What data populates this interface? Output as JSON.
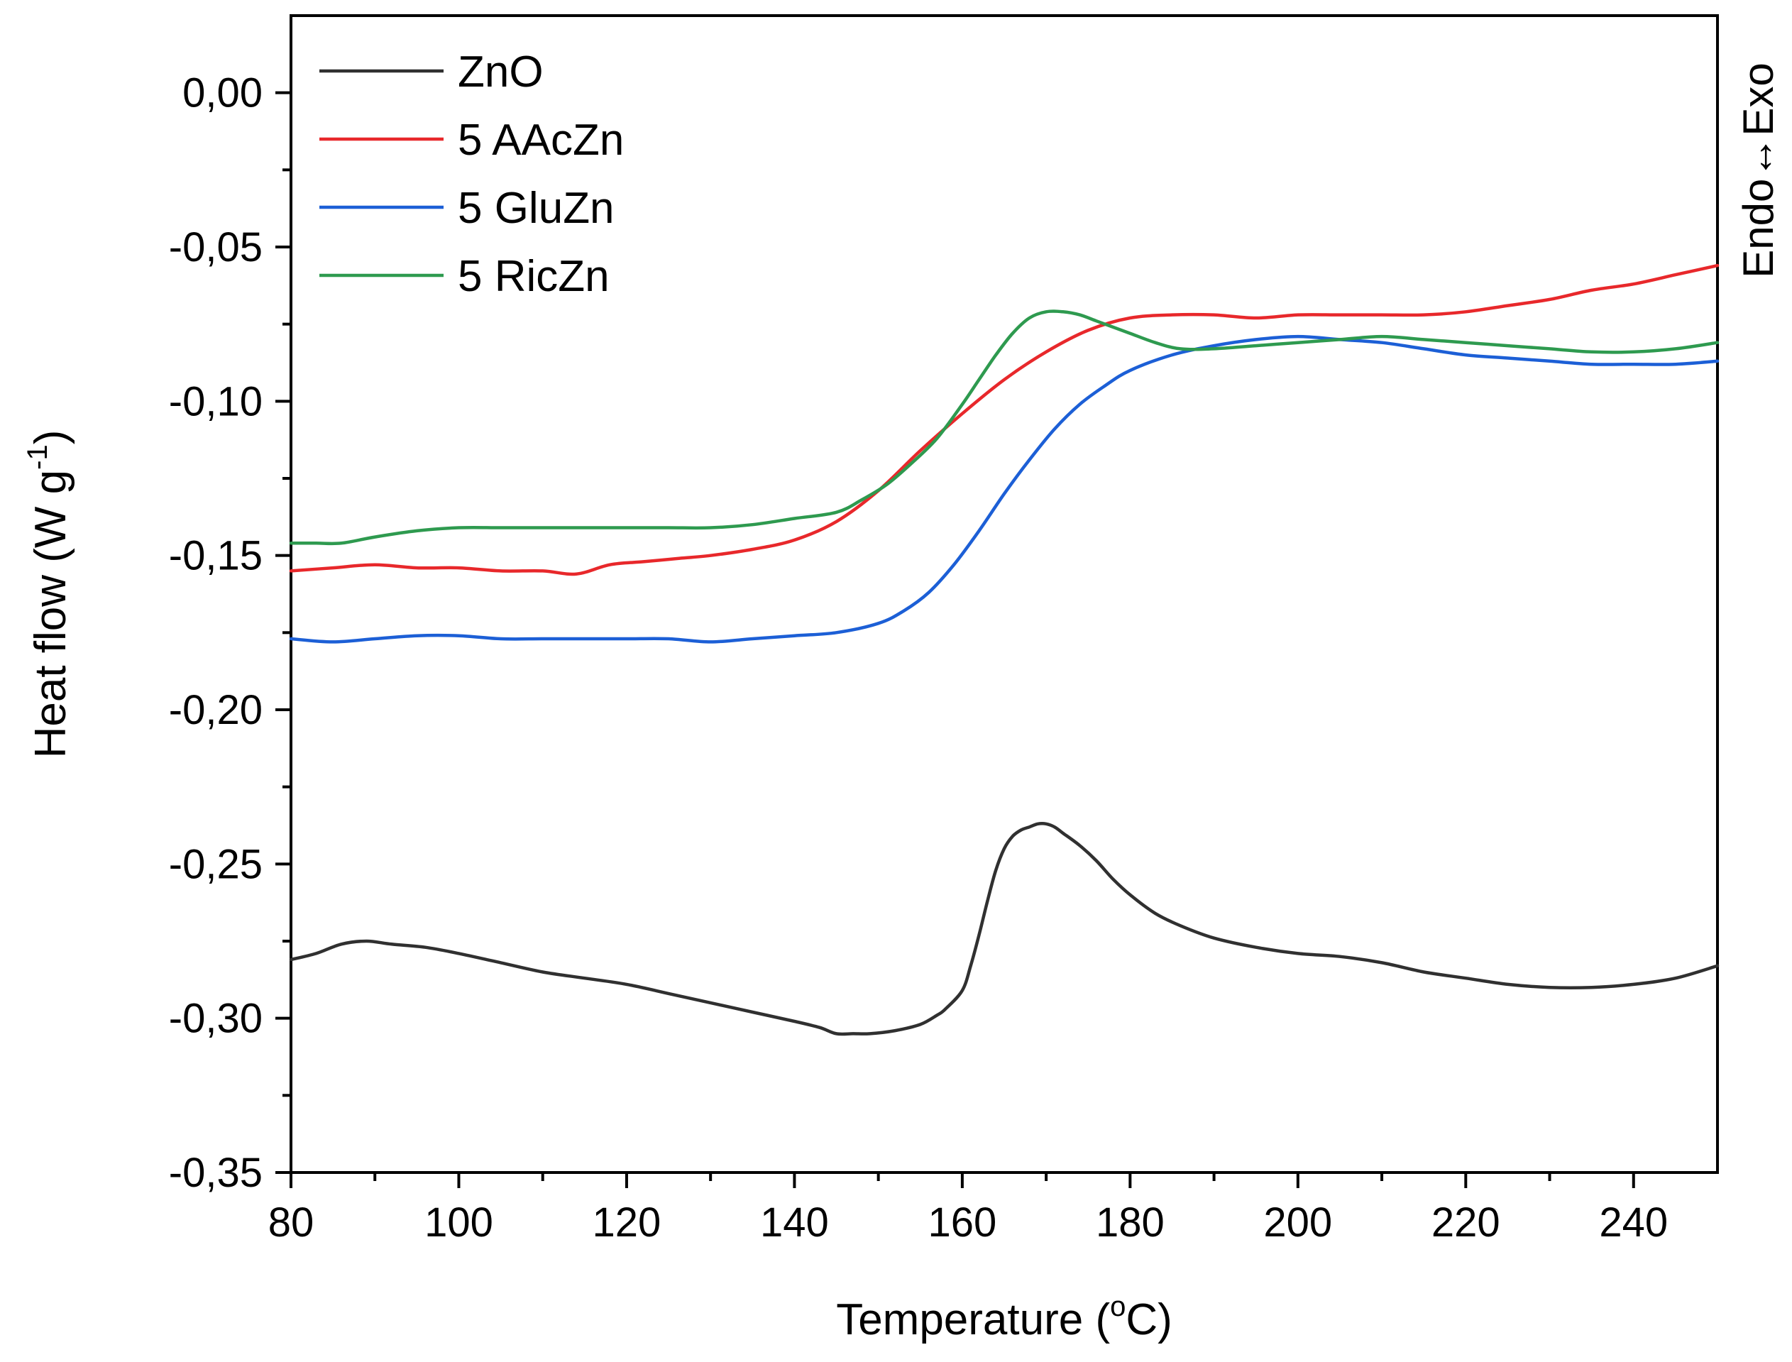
{
  "chart_data": {
    "type": "line",
    "title": "",
    "xlabel": "Temperature (",
    "xlabel_unit": "C)",
    "xlabel_degree": "o",
    "ylabel": "Heat flow (W g",
    "ylabel_sup": "-1",
    "ylabel_close": ")",
    "side_label": "Endo↔Exo",
    "xlim": [
      80,
      250
    ],
    "ylim": [
      -0.35,
      0.025
    ],
    "x_ticks": [
      80,
      100,
      120,
      140,
      160,
      180,
      200,
      220,
      240
    ],
    "x_tick_labels": [
      "80",
      "100",
      "120",
      "140",
      "160",
      "180",
      "200",
      "220",
      "240"
    ],
    "y_ticks": [
      0.0,
      -0.05,
      -0.1,
      -0.15,
      -0.2,
      -0.25,
      -0.3,
      -0.35
    ],
    "y_tick_labels": [
      "0,00",
      "-0,05",
      "-0,10",
      "-0,15",
      "-0,20",
      "-0,25",
      "-0,30",
      "-0,35"
    ],
    "legend_position": "top-left",
    "series": [
      {
        "name": "ZnO",
        "color": "#303030",
        "x": [
          80,
          83,
          86,
          89,
          92,
          96,
          100,
          105,
          110,
          115,
          120,
          125,
          130,
          135,
          140,
          143,
          145,
          147,
          149,
          152,
          155,
          157,
          158,
          160,
          161,
          162,
          163,
          164,
          165,
          166,
          167,
          168,
          169,
          170,
          171,
          172,
          174,
          176,
          178,
          180,
          183,
          186,
          190,
          195,
          200,
          205,
          210,
          215,
          220,
          225,
          230,
          235,
          240,
          245,
          250
        ],
        "values": [
          -0.281,
          -0.279,
          -0.276,
          -0.275,
          -0.276,
          -0.277,
          -0.279,
          -0.282,
          -0.285,
          -0.287,
          -0.289,
          -0.292,
          -0.295,
          -0.298,
          -0.301,
          -0.303,
          -0.305,
          -0.305,
          -0.305,
          -0.304,
          -0.302,
          -0.299,
          -0.297,
          -0.291,
          -0.283,
          -0.273,
          -0.262,
          -0.252,
          -0.245,
          -0.241,
          -0.239,
          -0.238,
          -0.237,
          -0.237,
          -0.238,
          -0.24,
          -0.244,
          -0.249,
          -0.255,
          -0.26,
          -0.266,
          -0.27,
          -0.274,
          -0.277,
          -0.279,
          -0.28,
          -0.282,
          -0.285,
          -0.287,
          -0.289,
          -0.29,
          -0.29,
          -0.289,
          -0.287,
          -0.283
        ]
      },
      {
        "name": "5 AAcZn",
        "color": "#e8282b",
        "x": [
          80,
          85,
          90,
          95,
          100,
          105,
          110,
          114,
          118,
          122,
          126,
          130,
          135,
          140,
          145,
          150,
          155,
          160,
          165,
          170,
          175,
          180,
          185,
          190,
          195,
          200,
          205,
          210,
          215,
          220,
          225,
          230,
          235,
          240,
          245,
          250
        ],
        "values": [
          -0.155,
          -0.154,
          -0.153,
          -0.154,
          -0.154,
          -0.155,
          -0.155,
          -0.156,
          -0.153,
          -0.152,
          -0.151,
          -0.15,
          -0.148,
          -0.145,
          -0.139,
          -0.129,
          -0.116,
          -0.104,
          -0.093,
          -0.084,
          -0.077,
          -0.073,
          -0.072,
          -0.072,
          -0.073,
          -0.072,
          -0.072,
          -0.072,
          -0.072,
          -0.071,
          -0.069,
          -0.067,
          -0.064,
          -0.062,
          -0.059,
          -0.056
        ]
      },
      {
        "name": "5 GluZn",
        "color": "#1c5fd6",
        "x": [
          80,
          85,
          90,
          95,
          100,
          105,
          110,
          115,
          120,
          125,
          130,
          135,
          140,
          145,
          150,
          153,
          156,
          159,
          162,
          165,
          168,
          171,
          174,
          177,
          180,
          185,
          190,
          195,
          200,
          205,
          210,
          215,
          220,
          225,
          230,
          235,
          240,
          245,
          250
        ],
        "values": [
          -0.177,
          -0.178,
          -0.177,
          -0.176,
          -0.176,
          -0.177,
          -0.177,
          -0.177,
          -0.177,
          -0.177,
          -0.178,
          -0.177,
          -0.176,
          -0.175,
          -0.172,
          -0.168,
          -0.162,
          -0.153,
          -0.142,
          -0.13,
          -0.119,
          -0.109,
          -0.101,
          -0.095,
          -0.09,
          -0.085,
          -0.082,
          -0.08,
          -0.079,
          -0.08,
          -0.081,
          -0.083,
          -0.085,
          -0.086,
          -0.087,
          -0.088,
          -0.088,
          -0.088,
          -0.087
        ]
      },
      {
        "name": "5 RicZn",
        "color": "#2e9a4f",
        "x": [
          80,
          83,
          86,
          90,
          95,
          100,
          105,
          110,
          115,
          120,
          125,
          130,
          135,
          140,
          145,
          148,
          151,
          154,
          157,
          160,
          162,
          164,
          166,
          168,
          170,
          172,
          174,
          176,
          178,
          180,
          183,
          186,
          190,
          195,
          200,
          205,
          210,
          215,
          220,
          225,
          230,
          235,
          240,
          245,
          250
        ],
        "values": [
          -0.146,
          -0.146,
          -0.146,
          -0.144,
          -0.142,
          -0.141,
          -0.141,
          -0.141,
          -0.141,
          -0.141,
          -0.141,
          -0.141,
          -0.14,
          -0.138,
          -0.136,
          -0.132,
          -0.127,
          -0.12,
          -0.112,
          -0.101,
          -0.093,
          -0.085,
          -0.078,
          -0.073,
          -0.071,
          -0.071,
          -0.072,
          -0.074,
          -0.076,
          -0.078,
          -0.081,
          -0.083,
          -0.083,
          -0.082,
          -0.081,
          -0.08,
          -0.079,
          -0.08,
          -0.081,
          -0.082,
          -0.083,
          -0.084,
          -0.084,
          -0.083,
          -0.081
        ]
      }
    ]
  }
}
